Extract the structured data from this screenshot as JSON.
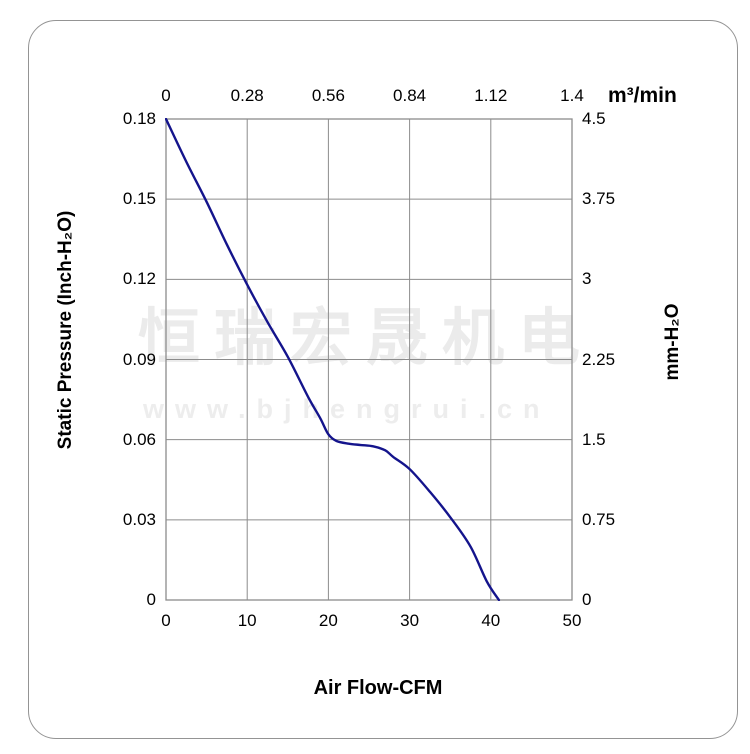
{
  "watermark": {
    "line1": "恒瑞宏晟机电",
    "line2": "www.bjhengrui.cn"
  },
  "colors": {
    "curve": "#14148C",
    "grid": "#8C8C8C",
    "frame": "#8C8C8C",
    "watermark": "#ECECEC",
    "text": "#000000"
  },
  "chart_data": {
    "type": "line",
    "title": "",
    "grid": true,
    "x_bottom": {
      "label": "Air Flow-CFM",
      "ticks": [
        "0",
        "10",
        "20",
        "30",
        "40",
        "50"
      ],
      "range": [
        0,
        50
      ]
    },
    "x_top": {
      "label": "m³/min",
      "ticks": [
        "0",
        "0.28",
        "0.56",
        "0.84",
        "1.12",
        "1.4"
      ],
      "range": [
        0,
        1.4
      ]
    },
    "y_left": {
      "label": "Static Pressure (Inch-H₂O)",
      "ticks": [
        "0.18",
        "0.15",
        "0.12",
        "0.09",
        "0.06",
        "0.03",
        "0"
      ],
      "range": [
        0,
        0.18
      ]
    },
    "y_right": {
      "label": "mm-H₂O",
      "ticks": [
        "4.5",
        "3.75",
        "3",
        "2.25",
        "1.5",
        "0.75",
        "0"
      ],
      "range": [
        0,
        4.5
      ]
    },
    "series": [
      {
        "name": "static-pressure-vs-airflow",
        "color": "#14148C",
        "points": [
          [
            0,
            0.18
          ],
          [
            2.5,
            0.164
          ],
          [
            5,
            0.149
          ],
          [
            7.5,
            0.133
          ],
          [
            10,
            0.118
          ],
          [
            12.5,
            0.104
          ],
          [
            15,
            0.091
          ],
          [
            17.5,
            0.076
          ],
          [
            19,
            0.068
          ],
          [
            20,
            0.062
          ],
          [
            21,
            0.0595
          ],
          [
            22.5,
            0.0585
          ],
          [
            24,
            0.058
          ],
          [
            25.5,
            0.0575
          ],
          [
            27,
            0.056
          ],
          [
            28,
            0.0535
          ],
          [
            30,
            0.049
          ],
          [
            32.5,
            0.0405
          ],
          [
            35,
            0.031
          ],
          [
            37.5,
            0.02
          ],
          [
            39.5,
            0.007
          ],
          [
            41,
            0
          ]
        ]
      }
    ]
  }
}
